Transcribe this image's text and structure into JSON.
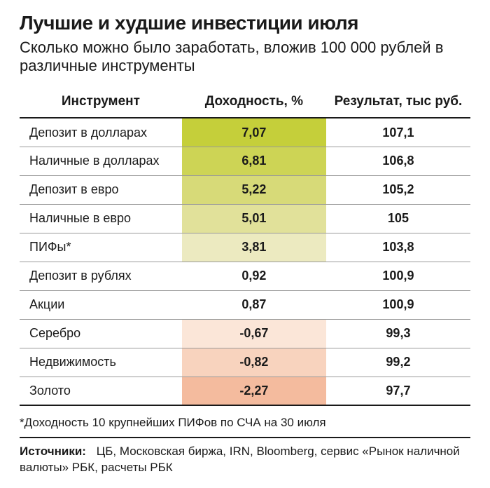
{
  "title": "Лучшие и худшие инвестиции июля",
  "subtitle": "Сколько можно было заработать, вложив 100 000 рублей в различные инструменты",
  "columns": {
    "instrument": "Инструмент",
    "yield": "Доходность, %",
    "result": "Результат, тыс руб."
  },
  "rows": [
    {
      "instrument": "Депозит в долларах",
      "yield": "7,07",
      "result": "107,1",
      "bg": "#c5cf3a"
    },
    {
      "instrument": "Наличные в долларах",
      "yield": "6,81",
      "result": "106,8",
      "bg": "#cdd455"
    },
    {
      "instrument": "Депозит в евро",
      "yield": "5,22",
      "result": "105,2",
      "bg": "#d7da78"
    },
    {
      "instrument": "Наличные в евро",
      "yield": "5,01",
      "result": "105",
      "bg": "#e1e19a"
    },
    {
      "instrument": "ПИФы*",
      "yield": "3,81",
      "result": "103,8",
      "bg": "#eceac0"
    },
    {
      "instrument": "Депозит в рублях",
      "yield": "0,92",
      "result": "100,9",
      "bg": "#ffffff"
    },
    {
      "instrument": "Акции",
      "yield": "0,87",
      "result": "100,9",
      "bg": "#ffffff"
    },
    {
      "instrument": "Серебро",
      "yield": "-0,67",
      "result": "99,3",
      "bg": "#fbe6d8"
    },
    {
      "instrument": "Недвижимость",
      "yield": "-0,82",
      "result": "99,2",
      "bg": "#f8d3be"
    },
    {
      "instrument": "Золото",
      "yield": "-2,27",
      "result": "97,7",
      "bg": "#f4bb9e"
    }
  ],
  "footnote": "*Доходность 10 крупнейших ПИФов по СЧА на 30 июля",
  "sources_label": "Источники:",
  "sources_text": "ЦБ, Московская биржа, IRN, Bloomberg, сервис «Рынок наличной валюты» РБК, расчеты РБК",
  "style": {
    "background": "#ffffff",
    "text_color": "#1a1a1a",
    "border_color": "#9a9a9a",
    "header_border": "#1a1a1a",
    "title_fontsize": 28,
    "subtitle_fontsize": 22,
    "header_fontsize": 19,
    "cell_fontsize": 18,
    "footnote_fontsize": 17
  }
}
